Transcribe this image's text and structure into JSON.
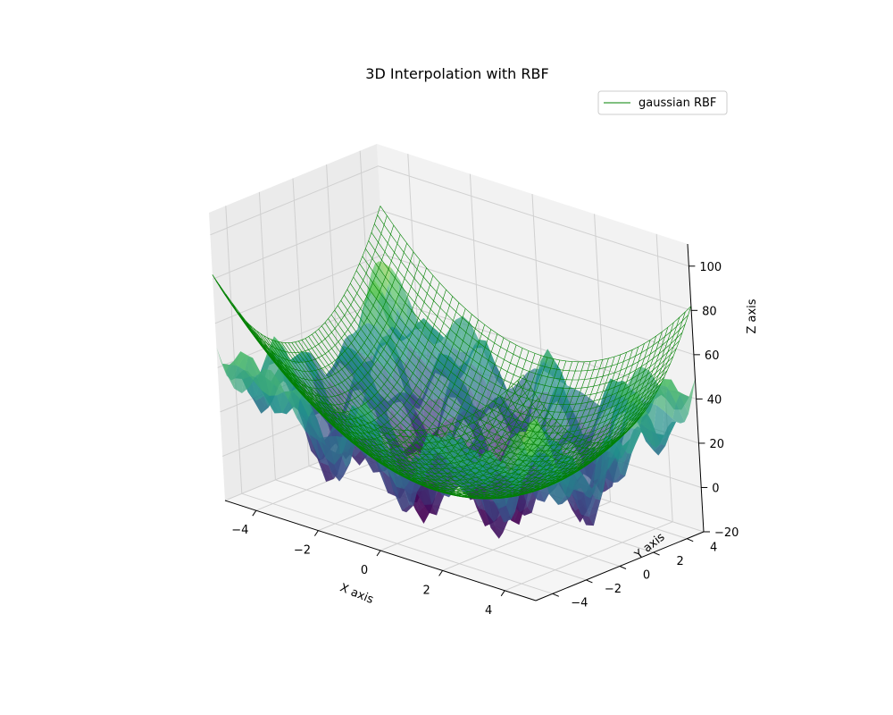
{
  "chart_data": {
    "type": "surface3d",
    "title": "3D Interpolation with RBF",
    "xlabel": "X axis",
    "ylabel": "Y axis",
    "zlabel": "Z axis",
    "x_ticks": [
      -4,
      -2,
      0,
      2,
      4
    ],
    "y_ticks": [
      -4,
      -2,
      0,
      2,
      4
    ],
    "z_ticks": [
      -20,
      0,
      20,
      40,
      60,
      80,
      100
    ],
    "xlim": [
      -5,
      5
    ],
    "ylim": [
      -5,
      5
    ],
    "zlim": [
      -20,
      110
    ],
    "grid": true,
    "legend_position": "upper-right",
    "series": [
      {
        "name": "",
        "kind": "surface",
        "colormap": "viridis",
        "alpha": 0.7,
        "description_of_values": "z = x^2 + y^2 + 10*sin(x)*sin(y)*3 noisy oscillation sampled on a grid",
        "x_range": [
          -5,
          5
        ],
        "y_range": [
          -5,
          5
        ]
      },
      {
        "name": "gaussian RBF",
        "kind": "wireframe",
        "color": "#008000",
        "x_range": [
          -5,
          5
        ],
        "y_range": [
          -5,
          5
        ]
      }
    ],
    "legend": [
      "gaussian RBF"
    ]
  },
  "colors": {
    "wireframe": "#008000",
    "pane_x": "#f2f2f2",
    "pane_y": "#ebebeb",
    "pane_z": "#f5f5f5",
    "grid": "#d0d0d0"
  }
}
